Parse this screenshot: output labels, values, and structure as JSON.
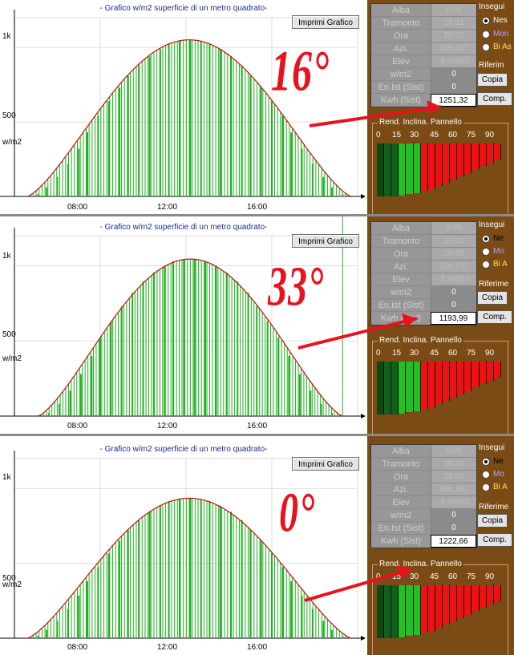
{
  "chart_data": [
    {
      "type": "bar",
      "title": "- Grafico w/m2 superficie di un metro quadrato-",
      "ylabel": "w/m2",
      "y_ticks": [
        "1k",
        "500"
      ],
      "x_ticks": [
        "08:00",
        "12:00",
        "16:00"
      ],
      "x_range_hours": [
        4.6,
        19.7
      ],
      "ylim": [
        0,
        1200
      ],
      "peak": {
        "x_hour": 12.5,
        "y": 1051
      },
      "series": [
        {
          "values": [
            0,
            15,
            60,
            130,
            220,
            320,
            430,
            540,
            640,
            730,
            810,
            880,
            940,
            990,
            1025,
            1045,
            1051,
            1045,
            1025,
            990,
            940,
            880,
            810,
            730,
            640,
            540,
            430,
            320,
            220,
            130,
            60,
            15,
            0
          ]
        }
      ],
      "x_hours": [
        4.6,
        5.1,
        5.5,
        6.0,
        6.5,
        7.0,
        7.4,
        7.9,
        8.4,
        8.9,
        9.3,
        9.8,
        10.3,
        10.8,
        11.2,
        11.7,
        12.2,
        12.7,
        13.1,
        13.6,
        14.1,
        14.6,
        15.0,
        15.5,
        16.0,
        16.5,
        16.9,
        17.4,
        17.9,
        18.4,
        18.8,
        19.3,
        19.7
      ]
    },
    {
      "type": "bar",
      "title": "- Grafico w/m2 superficie di un metro quadrato-",
      "ylabel": "w/m2",
      "y_ticks": [
        "1k",
        "500"
      ],
      "x_ticks": [
        "08:00",
        "12:00",
        "16:00"
      ],
      "x_range_hours": [
        5.1,
        19.3
      ],
      "ylim": [
        0,
        1200
      ],
      "peak": {
        "x_hour": 12.4,
        "y": 1045
      },
      "series": [
        {
          "values": [
            0,
            20,
            80,
            170,
            280,
            400,
            520,
            630,
            730,
            820,
            895,
            955,
            1000,
            1030,
            1045,
            1045,
            1030,
            1000,
            955,
            895,
            820,
            730,
            630,
            520,
            400,
            280,
            170,
            80,
            20,
            0
          ]
        }
      ],
      "x_hours": [
        5.1,
        5.6,
        6.1,
        6.6,
        7.1,
        7.6,
        8.0,
        8.5,
        9.0,
        9.5,
        10.0,
        10.5,
        11.0,
        11.4,
        11.9,
        12.4,
        12.9,
        13.4,
        13.9,
        14.4,
        14.9,
        15.3,
        15.8,
        16.3,
        16.8,
        17.3,
        17.8,
        18.3,
        18.8,
        19.3
      ]
    },
    {
      "type": "bar",
      "title": "- Grafico w/m2 superficie di un metro quadrato-",
      "ylabel": "w/m2",
      "y_ticks": [
        "1k",
        "500"
      ],
      "x_ticks": [
        "08:00",
        "12:00",
        "16:00"
      ],
      "x_range_hours": [
        4.6,
        19.7
      ],
      "ylim": [
        0,
        1200
      ],
      "peak": {
        "x_hour": 12.5,
        "y": 935
      },
      "series": [
        {
          "values": [
            0,
            15,
            55,
            115,
            195,
            285,
            380,
            475,
            565,
            650,
            725,
            790,
            845,
            885,
            915,
            930,
            935,
            930,
            915,
            885,
            845,
            790,
            725,
            650,
            565,
            475,
            380,
            285,
            195,
            115,
            55,
            15,
            0
          ]
        }
      ],
      "x_hours": [
        4.6,
        5.1,
        5.5,
        6.0,
        6.5,
        7.0,
        7.4,
        7.9,
        8.4,
        8.9,
        9.3,
        9.8,
        10.3,
        10.8,
        11.2,
        11.7,
        12.2,
        12.7,
        13.1,
        13.6,
        14.1,
        14.6,
        15.0,
        15.5,
        16.0,
        16.5,
        16.9,
        17.4,
        17.9,
        18.4,
        18.8,
        19.3,
        19.7
      ]
    }
  ],
  "panels": [
    {
      "print_label": "Imprimi Grafico",
      "tilt_label": "16°",
      "table": [
        {
          "label": "Alba",
          "value": "5:05"
        },
        {
          "label": "Tramonto",
          "value": "19:31"
        },
        {
          "label": "Ora",
          "value": "20:50"
        },
        {
          "label": "Azi.",
          "value": "306,197"
        },
        {
          "label": "Elev",
          "value": "-8,96563"
        },
        {
          "label": "w/m2",
          "value": "0"
        },
        {
          "label": "En.Ist (Sist)",
          "value": "0"
        },
        {
          "label": "Kwh (Sist)",
          "value": "1251,32"
        }
      ],
      "insegui_label": "Insegui",
      "radios": [
        "Nes",
        "Mon",
        "Bi As"
      ],
      "riferim_label": "Riferim",
      "copia_label": "Copia",
      "comp_label": "Comp.",
      "rend_title": "Rend. Inclina. Pannello",
      "scale": [
        "0",
        "15",
        "30",
        "45",
        "60",
        "75",
        "90"
      ]
    },
    {
      "print_label": "Imprimi Grafico",
      "tilt_label": "33°",
      "table": [
        {
          "label": "Alba",
          "value": "5:05"
        },
        {
          "label": "Tramonto",
          "value": "19:31"
        },
        {
          "label": "Ora",
          "value": "20:50"
        },
        {
          "label": "Azi.",
          "value": "306,197"
        },
        {
          "label": "Elev",
          "value": "-8,96563"
        },
        {
          "label": "w/m2",
          "value": "0"
        },
        {
          "label": "En.Ist (Sist)",
          "value": "0"
        },
        {
          "label": "Kwh (Sist)",
          "value": "1193,99"
        }
      ],
      "insegui_label": "Insegui",
      "radios": [
        "Ne",
        "Mo",
        "Bi A"
      ],
      "riferim_label": "Riferime",
      "copia_label": "Copia",
      "comp_label": "Comp.",
      "rend_title": "Rend. Inclina. Pannello",
      "scale": [
        "0",
        "15",
        "30",
        "45",
        "60",
        "75",
        "90"
      ]
    },
    {
      "print_label": "Imprimi Grafico",
      "tilt_label": "0°",
      "table": [
        {
          "label": "Alba",
          "value": "5:05"
        },
        {
          "label": "Tramonto",
          "value": "19:31"
        },
        {
          "label": "Ora",
          "value": "20:50"
        },
        {
          "label": "Azi.",
          "value": "306,197"
        },
        {
          "label": "Elev",
          "value": "-8,96563"
        },
        {
          "label": "w/m2",
          "value": "0"
        },
        {
          "label": "En.Ist (Sist)",
          "value": "0"
        },
        {
          "label": "Kwh (Sist)",
          "value": "1222,66"
        }
      ],
      "insegui_label": "Insegui",
      "radios": [
        "Ne",
        "Mo",
        "Bi A"
      ],
      "riferim_label": "Riferime",
      "copia_label": "Copia",
      "comp_label": "Comp.",
      "rend_title": "Rend. Inclina. Pannello",
      "scale": [
        "0",
        "15",
        "30",
        "45",
        "60",
        "75",
        "90"
      ]
    }
  ],
  "colors": {
    "curve": "#c01010",
    "bar_fill": "#22b022",
    "panel_bg": "#7a4b14",
    "arrow": "#e8121f",
    "eff_dark_green": "#0c4a10",
    "eff_green": "#22c022",
    "eff_red": "#ee1111"
  }
}
